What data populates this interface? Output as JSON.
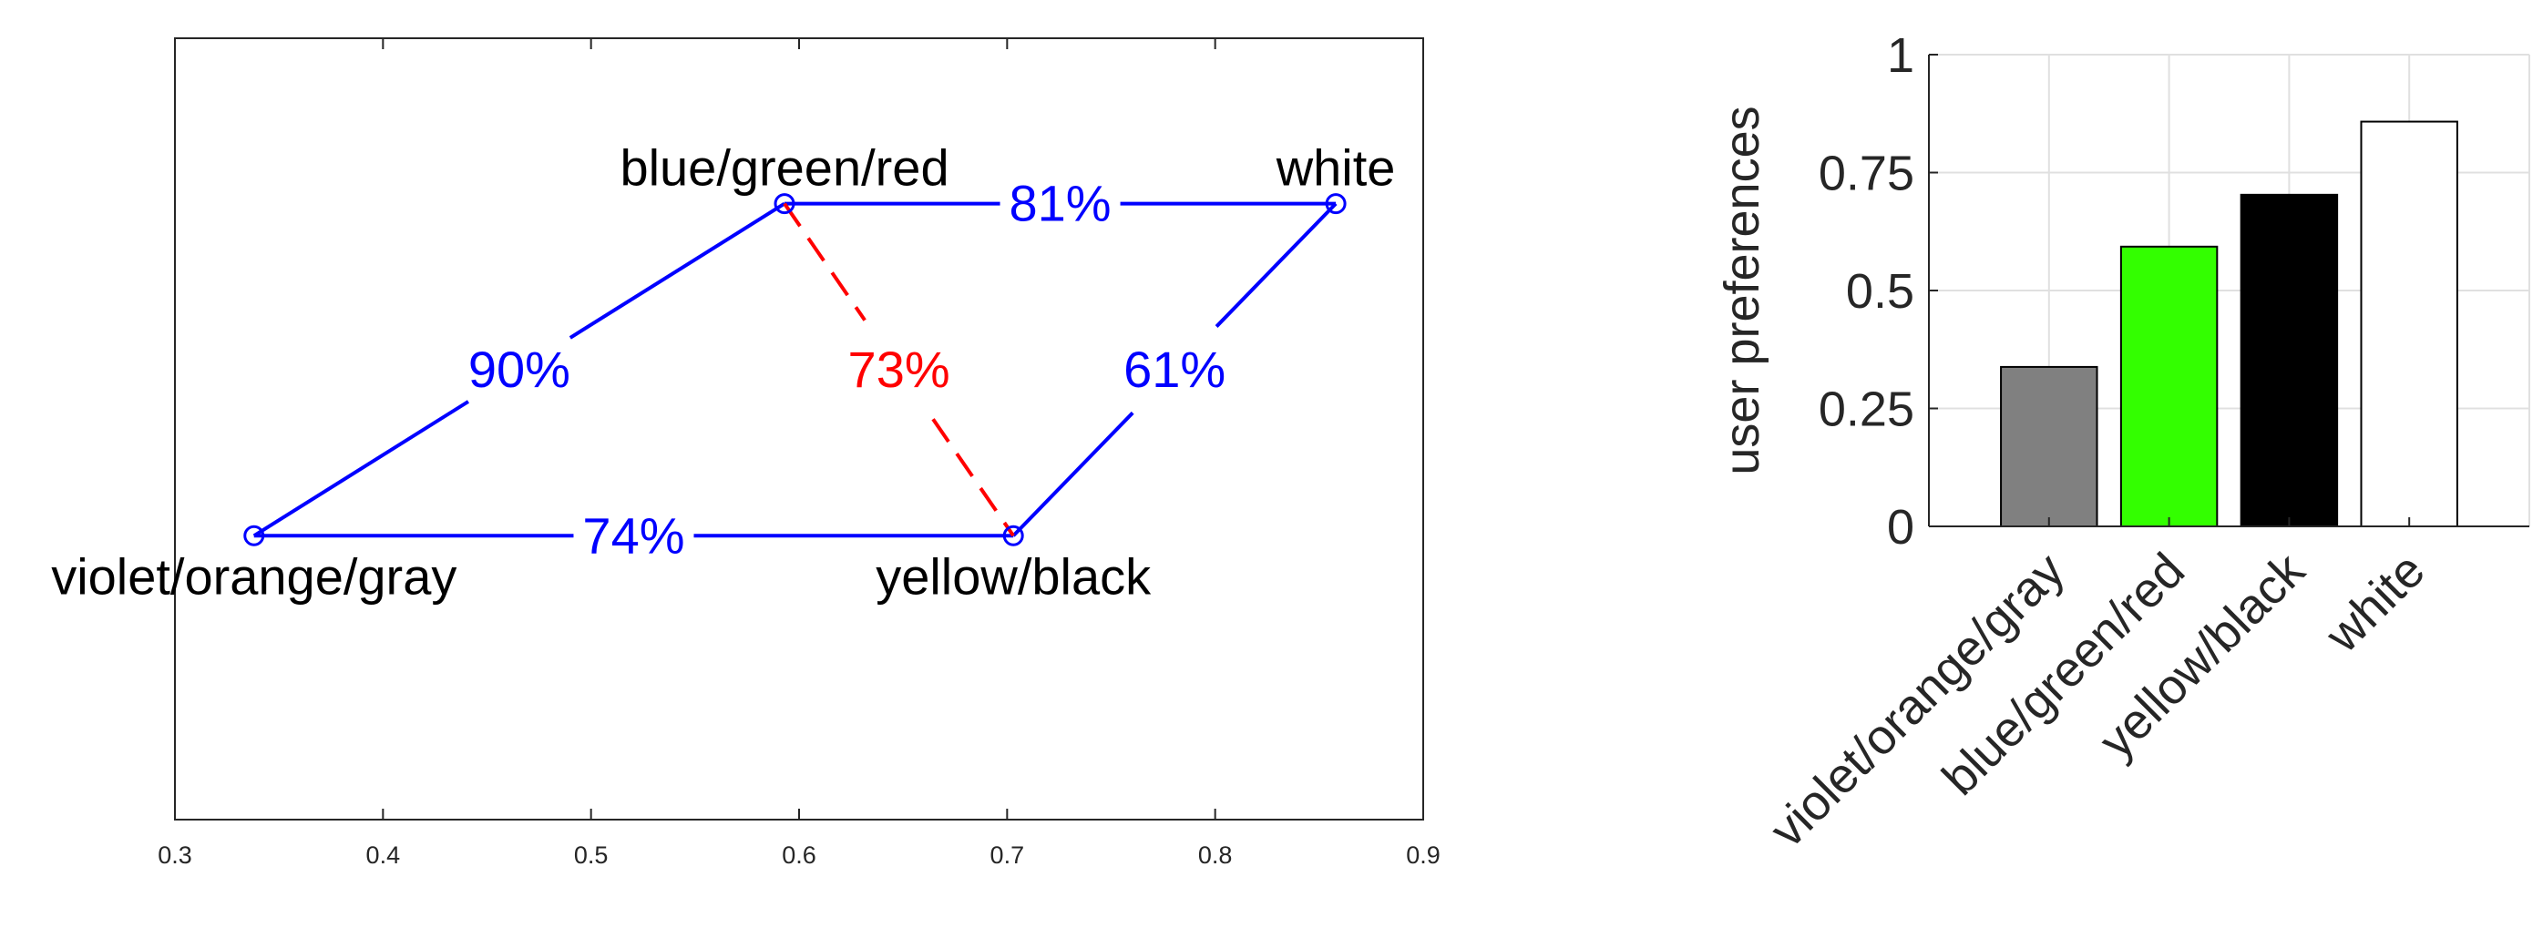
{
  "chart_data": [
    {
      "type": "scatter",
      "subtype": "network",
      "x": [
        0.3,
        0.9
      ],
      "xlim": [
        0.3,
        0.9
      ],
      "xticks": [
        "0.3",
        "0.4",
        "0.5",
        "0.6",
        "0.7",
        "0.8",
        "0.9"
      ],
      "grid": false,
      "nodes": [
        {
          "id": "vog",
          "label": "violet/orange/gray",
          "x": 0.338,
          "y": 0.338,
          "label_pos": "below"
        },
        {
          "id": "bgr",
          "label": "blue/green/red",
          "x": 0.593,
          "y": 0.593,
          "label_pos": "above"
        },
        {
          "id": "yb",
          "label": "yellow/black",
          "x": 0.703,
          "y": 0.338,
          "label_pos": "below"
        },
        {
          "id": "wh",
          "label": "white",
          "x": 0.858,
          "y": 0.593,
          "label_pos": "above"
        }
      ],
      "ylim": [
        0.12,
        0.72
      ],
      "edges": [
        {
          "from": "vog",
          "to": "bgr",
          "label": "90%",
          "color": "#0000ff",
          "style": "solid"
        },
        {
          "from": "bgr",
          "to": "wh",
          "label": "81%",
          "color": "#0000ff",
          "style": "solid"
        },
        {
          "from": "vog",
          "to": "yb",
          "label": "74%",
          "color": "#0000ff",
          "style": "solid"
        },
        {
          "from": "yb",
          "to": "wh",
          "label": "61%",
          "color": "#0000ff",
          "style": "solid"
        },
        {
          "from": "bgr",
          "to": "yb",
          "label": "73%",
          "color": "#ff0000",
          "style": "dashed"
        }
      ]
    },
    {
      "type": "bar",
      "categories": [
        "violet/orange/gray",
        "blue/green/red",
        "yellow/black",
        "white"
      ],
      "values": [
        0.338,
        0.593,
        0.703,
        0.858
      ],
      "colors": [
        "#808080",
        "#33ff00",
        "#000000",
        "#ffffff"
      ],
      "ylabel": "user preferences",
      "ylim": [
        0,
        1
      ],
      "yticks": [
        "0",
        "0.25",
        "0.5",
        "0.75",
        "1"
      ],
      "grid": true
    }
  ]
}
